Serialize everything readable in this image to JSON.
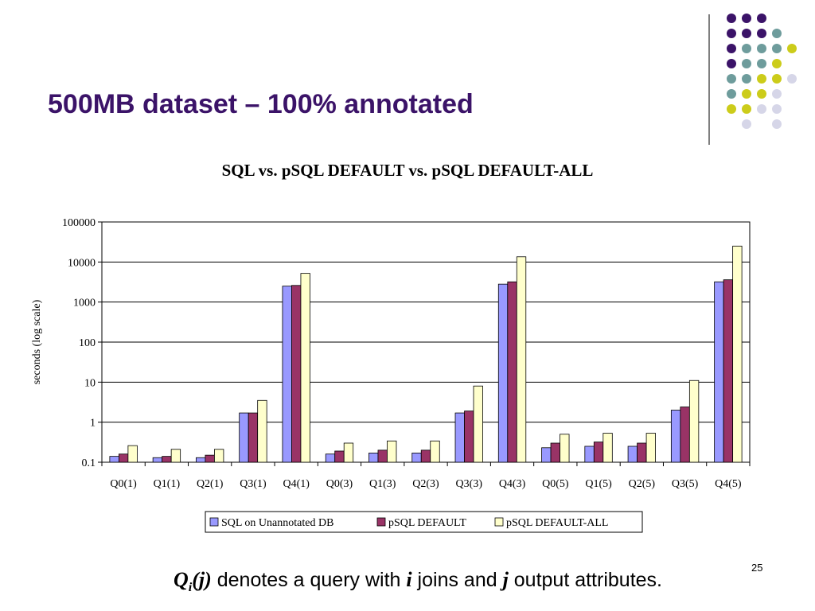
{
  "slide": {
    "title": "500MB dataset – 100% annotated",
    "page_number": "25",
    "footnote": {
      "q_letter": "Q",
      "q_sub": "i",
      "q_arg": "(j)",
      "text1": " denotes a query with ",
      "i": "i",
      "text2": " joins and ",
      "j": "j",
      "text3": " output attributes."
    }
  },
  "decoration": {
    "dot_colors": {
      "purple": "#3b1368",
      "teal": "#6e9c9c",
      "yellow": "#cccc1a",
      "lavender": "#d6d6e8"
    },
    "divider_color": "#555555"
  },
  "chart_data": {
    "type": "bar",
    "title": "SQL vs. pSQL DEFAULT vs. pSQL DEFAULT-ALL",
    "xlabel": "",
    "ylabel": "seconds (log scale)",
    "yscale": "log",
    "ylim": [
      0.1,
      100000
    ],
    "yticks": [
      "0.1",
      "1",
      "10",
      "100",
      "1000",
      "10000",
      "100000"
    ],
    "grid": true,
    "legend_position": "bottom",
    "categories": [
      "Q0(1)",
      "Q1(1)",
      "Q2(1)",
      "Q3(1)",
      "Q4(1)",
      "Q0(3)",
      "Q1(3)",
      "Q2(3)",
      "Q3(3)",
      "Q4(3)",
      "Q0(5)",
      "Q1(5)",
      "Q2(5)",
      "Q3(5)",
      "Q4(5)"
    ],
    "series": [
      {
        "name": "SQL on Unannotated DB",
        "color": "#9999ff",
        "values": [
          0.14,
          0.13,
          0.13,
          1.7,
          2500,
          0.16,
          0.17,
          0.17,
          1.7,
          2800,
          0.23,
          0.25,
          0.25,
          2.0,
          3200
        ]
      },
      {
        "name": "pSQL DEFAULT",
        "color": "#993366",
        "values": [
          0.16,
          0.14,
          0.15,
          1.7,
          2600,
          0.19,
          0.2,
          0.2,
          1.9,
          3200,
          0.3,
          0.32,
          0.3,
          2.4,
          3600
        ]
      },
      {
        "name": "pSQL DEFAULT-ALL",
        "color": "#ffffcc",
        "values": [
          0.26,
          0.21,
          0.21,
          3.5,
          5200,
          0.3,
          0.34,
          0.34,
          8.0,
          13500,
          0.5,
          0.53,
          0.53,
          11,
          25000
        ]
      }
    ]
  }
}
